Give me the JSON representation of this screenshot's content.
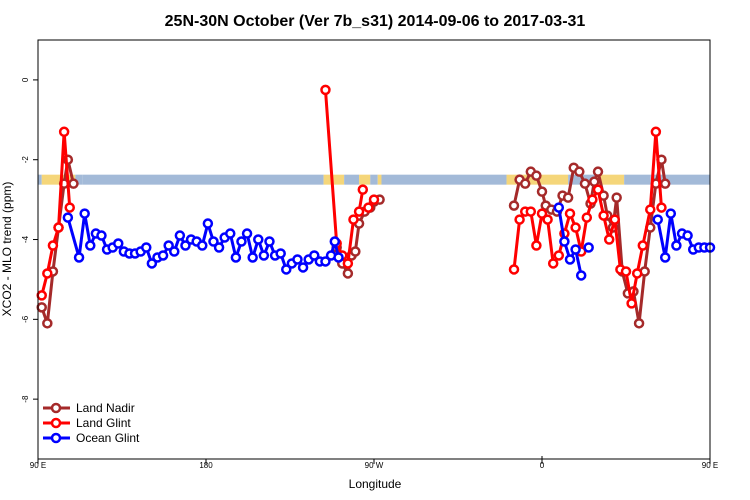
{
  "chart_data": {
    "type": "line",
    "title": "25N-30N October (Ver 7b_s31)   2014-09-06 to 2017-03-31",
    "xlabel": "Longitude",
    "ylabel": "XCO2 - MLO trend (ppm)",
    "xlim": [
      90,
      450
    ],
    "ylim": [
      -9.5,
      1.0
    ],
    "x_ticks": [
      {
        "value": 90,
        "label": "90 E"
      },
      {
        "value": 180,
        "label": "180"
      },
      {
        "value": 270,
        "label": "90 W"
      },
      {
        "value": 360,
        "label": "0"
      },
      {
        "value": 450,
        "label": "90 E"
      }
    ],
    "x_ticks_minor": [
      360,
      450
    ],
    "y_ticks": [
      0,
      -2,
      -4,
      -6,
      -8
    ],
    "legend_position": "bottom-left",
    "reference_band": {
      "y_center": -2.5,
      "colors": {
        "land": "#f5d67a",
        "ocean": "#a3bad8"
      },
      "segments": [
        {
          "x0": 90,
          "x1": 92,
          "kind": "ocean"
        },
        {
          "x0": 92,
          "x1": 110,
          "kind": "land"
        },
        {
          "x0": 110,
          "x1": 114,
          "kind": "ocean"
        },
        {
          "x0": 114,
          "x1": 243,
          "kind": "ocean"
        },
        {
          "x0": 243,
          "x1": 254,
          "kind": "land"
        },
        {
          "x0": 254,
          "x1": 262,
          "kind": "ocean"
        },
        {
          "x0": 262,
          "x1": 268,
          "kind": "land"
        },
        {
          "x0": 268,
          "x1": 272,
          "kind": "ocean"
        },
        {
          "x0": 272,
          "x1": 274,
          "kind": "land"
        },
        {
          "x0": 274,
          "x1": 341,
          "kind": "ocean"
        },
        {
          "x0": 341,
          "x1": 374,
          "kind": "land"
        },
        {
          "x0": 374,
          "x1": 389,
          "kind": "ocean"
        },
        {
          "x0": 389,
          "x1": 404,
          "kind": "land"
        },
        {
          "x0": 404,
          "x1": 418,
          "kind": "ocean"
        },
        {
          "x0": 418,
          "x1": 450,
          "kind": "ocean"
        }
      ]
    },
    "series": [
      {
        "name": "Land Nadir",
        "color": "#a52a2a",
        "segments": [
          [
            [
              92,
              -5.7
            ],
            [
              95,
              -6.1
            ],
            [
              98,
              -4.8
            ],
            [
              101,
              -3.7
            ],
            [
              104,
              -2.6
            ],
            [
              106,
              -2.0
            ],
            [
              109,
              -2.6
            ]
          ],
          [
            [
              250,
              -4.2
            ],
            [
              253,
              -4.6
            ],
            [
              256,
              -4.85
            ],
            [
              258,
              -4.4
            ],
            [
              260,
              -4.3
            ],
            [
              262,
              -3.6
            ],
            [
              265,
              -3.3
            ],
            [
              268,
              -3.2
            ],
            [
              270,
              -3.05
            ],
            [
              273,
              -3.0
            ]
          ],
          [
            [
              345,
              -3.15
            ],
            [
              348,
              -2.5
            ],
            [
              351,
              -2.6
            ],
            [
              354,
              -2.3
            ],
            [
              357,
              -2.4
            ],
            [
              360,
              -2.8
            ],
            [
              362,
              -3.15
            ],
            [
              365,
              -3.25
            ],
            [
              368,
              -3.3
            ],
            [
              371,
              -2.9
            ],
            [
              374,
              -2.95
            ],
            [
              377,
              -2.2
            ],
            [
              380,
              -2.3
            ],
            [
              383,
              -2.6
            ],
            [
              386,
              -3.1
            ],
            [
              388,
              -2.55
            ],
            [
              390,
              -2.3
            ],
            [
              393,
              -2.9
            ],
            [
              395,
              -3.4
            ],
            [
              398,
              -3.7
            ],
            [
              400,
              -2.95
            ],
            [
              403,
              -4.8
            ],
            [
              406,
              -5.35
            ],
            [
              409,
              -5.3
            ],
            [
              412,
              -6.1
            ],
            [
              415,
              -4.8
            ],
            [
              418,
              -3.7
            ],
            [
              421,
              -2.6
            ],
            [
              424,
              -2.0
            ],
            [
              426,
              -2.6
            ]
          ]
        ]
      },
      {
        "name": "Land Glint",
        "color": "#ff0000",
        "segments": [
          [
            [
              92,
              -5.4
            ],
            [
              95,
              -4.85
            ],
            [
              98,
              -4.15
            ],
            [
              101,
              -3.7
            ],
            [
              104,
              -1.3
            ],
            [
              107,
              -3.2
            ]
          ],
          [
            [
              244,
              -0.25
            ],
            [
              250,
              -4.1
            ],
            [
              253,
              -4.4
            ],
            [
              256,
              -4.6
            ],
            [
              259,
              -3.5
            ],
            [
              262,
              -3.3
            ],
            [
              264,
              -2.75
            ]
          ],
          [
            [
              267,
              -3.2
            ],
            [
              270,
              -3.0
            ]
          ],
          [
            [
              345,
              -4.75
            ],
            [
              348,
              -3.5
            ],
            [
              351,
              -3.3
            ],
            [
              354,
              -3.3
            ],
            [
              357,
              -4.15
            ],
            [
              360,
              -3.35
            ],
            [
              363,
              -3.5
            ],
            [
              366,
              -4.6
            ],
            [
              369,
              -4.4
            ],
            [
              372,
              -3.85
            ],
            [
              375,
              -3.35
            ],
            [
              378,
              -3.7
            ],
            [
              381,
              -4.3
            ],
            [
              384,
              -3.45
            ],
            [
              387,
              -3.0
            ],
            [
              390,
              -2.75
            ],
            [
              393,
              -3.4
            ],
            [
              396,
              -4.0
            ],
            [
              399,
              -3.5
            ],
            [
              402,
              -4.75
            ],
            [
              405,
              -4.8
            ],
            [
              408,
              -5.6
            ],
            [
              411,
              -4.85
            ],
            [
              414,
              -4.15
            ],
            [
              418,
              -3.25
            ],
            [
              421,
              -1.3
            ],
            [
              424,
              -3.2
            ]
          ]
        ]
      },
      {
        "name": "Ocean Glint",
        "color": "#0000ff",
        "segments": [
          [
            [
              106,
              -3.45
            ],
            [
              112,
              -4.45
            ],
            [
              115,
              -3.35
            ],
            [
              118,
              -4.15
            ],
            [
              121,
              -3.85
            ],
            [
              124,
              -3.9
            ],
            [
              127,
              -4.25
            ],
            [
              130,
              -4.2
            ],
            [
              133,
              -4.1
            ],
            [
              136,
              -4.3
            ],
            [
              139,
              -4.35
            ],
            [
              142,
              -4.35
            ],
            [
              145,
              -4.3
            ],
            [
              148,
              -4.2
            ],
            [
              151,
              -4.6
            ],
            [
              154,
              -4.45
            ],
            [
              157,
              -4.4
            ],
            [
              160,
              -4.15
            ],
            [
              163,
              -4.3
            ],
            [
              166,
              -3.9
            ],
            [
              169,
              -4.15
            ],
            [
              172,
              -4.0
            ],
            [
              175,
              -4.05
            ],
            [
              178,
              -4.15
            ],
            [
              181,
              -3.6
            ],
            [
              184,
              -4.05
            ],
            [
              187,
              -4.2
            ],
            [
              190,
              -3.95
            ],
            [
              193,
              -3.85
            ],
            [
              196,
              -4.45
            ],
            [
              199,
              -4.05
            ],
            [
              202,
              -3.85
            ],
            [
              205,
              -4.45
            ],
            [
              208,
              -4.0
            ],
            [
              211,
              -4.4
            ],
            [
              214,
              -4.05
            ],
            [
              217,
              -4.4
            ],
            [
              220,
              -4.35
            ],
            [
              223,
              -4.75
            ],
            [
              226,
              -4.6
            ],
            [
              229,
              -4.5
            ],
            [
              232,
              -4.7
            ],
            [
              235,
              -4.5
            ],
            [
              238,
              -4.4
            ],
            [
              241,
              -4.55
            ],
            [
              244,
              -4.55
            ],
            [
              247,
              -4.4
            ],
            [
              249,
              -4.05
            ],
            [
              251,
              -4.45
            ]
          ],
          [
            [
              369,
              -3.2
            ],
            [
              372,
              -4.05
            ],
            [
              375,
              -4.5
            ],
            [
              378,
              -4.25
            ],
            [
              381,
              -4.9
            ]
          ],
          [
            [
              385,
              -4.2
            ]
          ],
          [
            [
              422,
              -3.5
            ],
            [
              426,
              -4.45
            ],
            [
              429,
              -3.35
            ],
            [
              432,
              -4.15
            ],
            [
              435,
              -3.85
            ],
            [
              438,
              -3.9
            ],
            [
              441,
              -4.25
            ],
            [
              444,
              -4.2
            ],
            [
              447,
              -4.2
            ],
            [
              450,
              -4.2
            ]
          ]
        ]
      }
    ]
  }
}
